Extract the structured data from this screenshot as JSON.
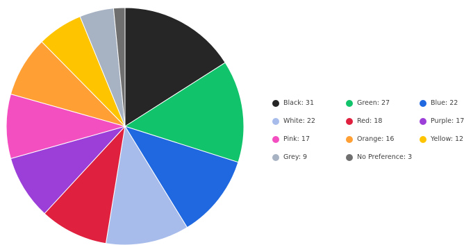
{
  "chart_data": {
    "type": "pie",
    "title": "",
    "legend_position": "right",
    "start_angle": "12 o'clock",
    "direction": "clockwise",
    "slices": [
      {
        "label": "Black: 31",
        "category": "Black",
        "value": 31,
        "color": "#262626"
      },
      {
        "label": "Green: 27",
        "category": "Green",
        "value": 27,
        "color": "#11c46b"
      },
      {
        "label": "Blue: 22",
        "category": "Blue",
        "value": 22,
        "color": "#1f68e0"
      },
      {
        "label": "White: 22",
        "category": "White",
        "value": 22,
        "color": "#a8bceb"
      },
      {
        "label": "Red: 18",
        "category": "Red",
        "value": 18,
        "color": "#e0203f"
      },
      {
        "label": "Purple: 17",
        "category": "Purple",
        "value": 17,
        "color": "#9b3fd8"
      },
      {
        "label": "Pink: 17",
        "category": "Pink",
        "value": 17,
        "color": "#f44fc0"
      },
      {
        "label": "Orange: 16",
        "category": "Orange",
        "value": 16,
        "color": "#ff9f34"
      },
      {
        "label": "Yellow: 12",
        "category": "Yellow",
        "value": 12,
        "color": "#ffc400"
      },
      {
        "label": "Grey: 9",
        "category": "Grey",
        "value": 9,
        "color": "#a7b2c2"
      },
      {
        "label": "No Preference: 3",
        "category": "No Preference",
        "value": 3,
        "color": "#6f6f6f"
      }
    ]
  }
}
